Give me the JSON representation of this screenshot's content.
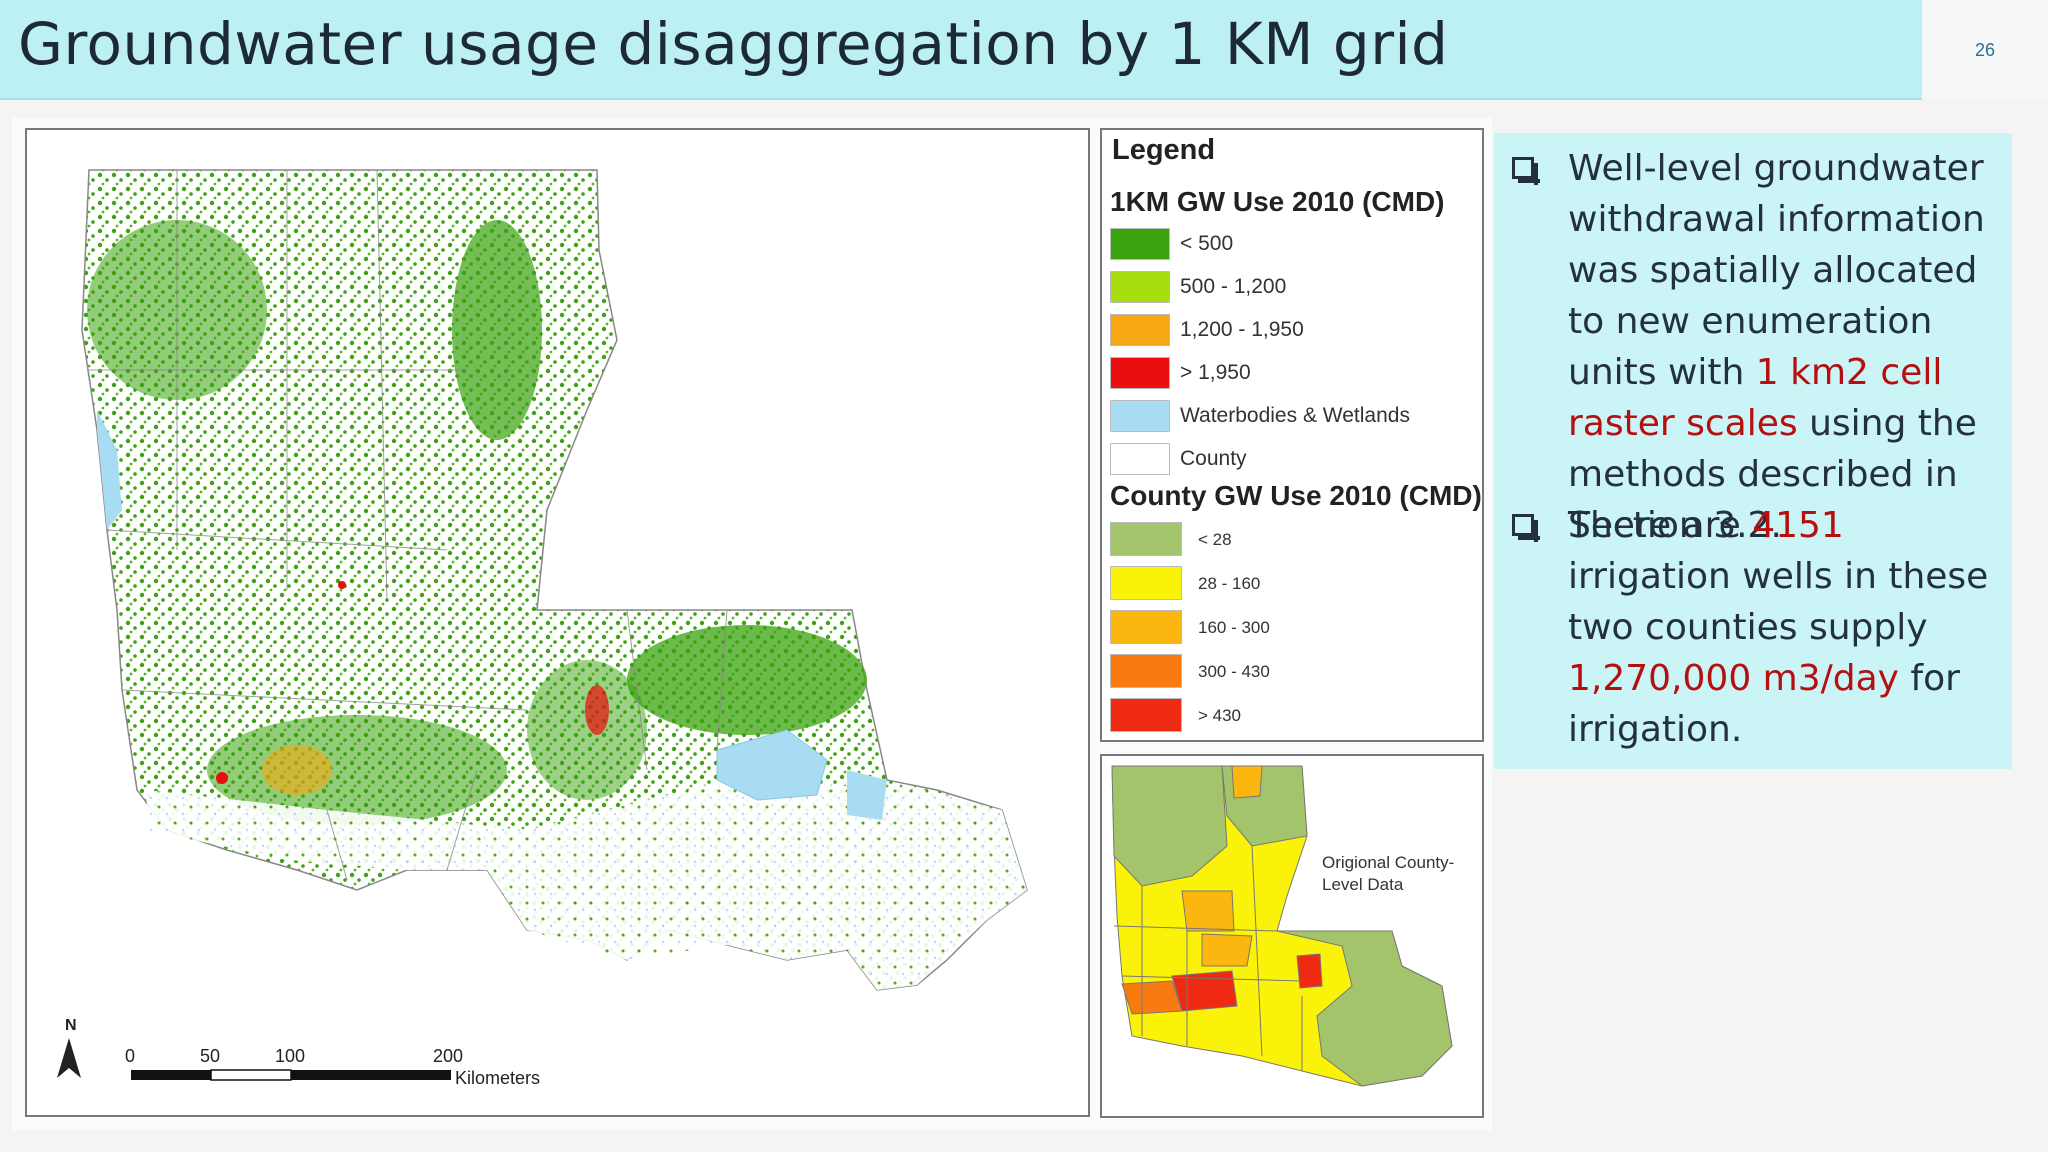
{
  "title": "Groundwater usage disaggregation by 1 KM grid",
  "slide_number": "26",
  "map": {
    "north_label": "N",
    "scale": {
      "ticks": [
        "0",
        "50",
        "100",
        "200"
      ],
      "unit": "Kilometers"
    }
  },
  "legend": {
    "title": "Legend",
    "grid_heading": "1KM GW Use 2010 (CMD)",
    "grid_items": [
      {
        "label": "< 500",
        "color": "#3aa30f"
      },
      {
        "label": "500 - 1,200",
        "color": "#a6de0f"
      },
      {
        "label": "1,200 - 1,950",
        "color": "#f7a614"
      },
      {
        "label": "> 1,950",
        "color": "#ea0e0e"
      },
      {
        "label": "Waterbodies & Wetlands",
        "color": "#a8dcf2"
      },
      {
        "label": "County",
        "color": "#ffffff"
      }
    ],
    "county_heading": "County GW Use 2010 (CMD)",
    "county_items": [
      {
        "label": "< 28",
        "color": "#a3c46a"
      },
      {
        "label": "28 - 160",
        "color": "#fbf20a"
      },
      {
        "label": "160 - 300",
        "color": "#fbb710"
      },
      {
        "label": "300 - 430",
        "color": "#f87b10"
      },
      {
        "label": "> 430",
        "color": "#ee2a12"
      }
    ]
  },
  "inset": {
    "label": "Origional County-Level Data"
  },
  "bullets": {
    "b1": {
      "part1": "Well-level groundwater withdrawal information was spatially allocated to new enumeration units with ",
      "highlight": "1 km2 cell raster scales",
      "part2": " using the methods described in Section 3.2."
    },
    "b2": {
      "part1": "There are ",
      "hl1": "4151",
      "part2": " irrigation wells in these two counties supply ",
      "hl2": "1,270,000 m3/day",
      "part3": " for irrigation."
    }
  }
}
